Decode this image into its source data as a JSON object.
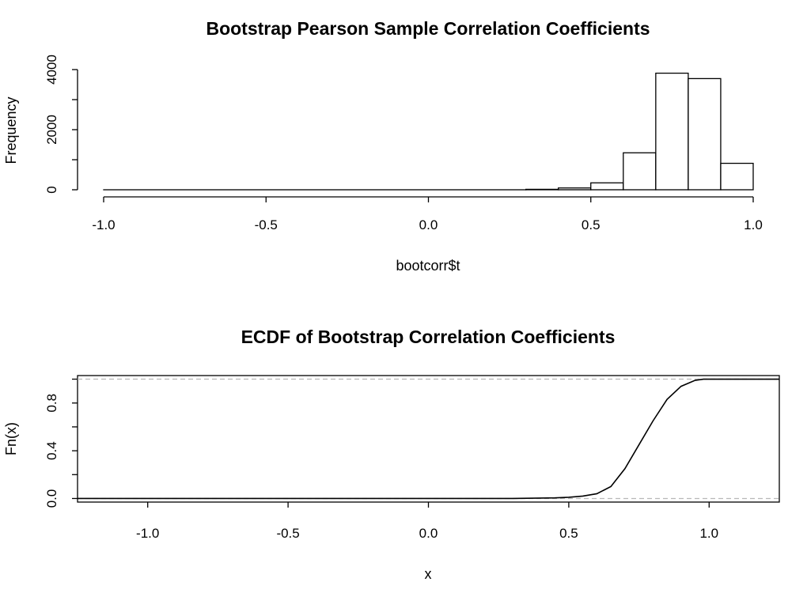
{
  "chart_data": [
    {
      "type": "bar",
      "subtype": "histogram",
      "title": "Bootstrap Pearson Sample Correlation Coefficients",
      "xlabel": "bootcorr$t",
      "ylabel": "Frequency",
      "xlim": [
        -1.0,
        1.0
      ],
      "ylim": [
        0,
        4000
      ],
      "x_ticks": [
        "-1.0",
        "-0.5",
        "0.0",
        "0.5",
        "1.0"
      ],
      "y_ticks": [
        "0",
        "2000",
        "4000"
      ],
      "y_minor_ticks": [
        1000,
        3000
      ],
      "bins": [
        {
          "x0": -1.0,
          "x1": 0.3,
          "count": 0
        },
        {
          "x0": 0.3,
          "x1": 0.4,
          "count": 15
        },
        {
          "x0": 0.4,
          "x1": 0.5,
          "count": 60
        },
        {
          "x0": 0.5,
          "x1": 0.6,
          "count": 230
        },
        {
          "x0": 0.6,
          "x1": 0.7,
          "count": 1230
        },
        {
          "x0": 0.7,
          "x1": 0.8,
          "count": 3880
        },
        {
          "x0": 0.8,
          "x1": 0.9,
          "count": 3700
        },
        {
          "x0": 0.9,
          "x1": 1.0,
          "count": 880
        }
      ],
      "grid": false
    },
    {
      "type": "line",
      "subtype": "ecdf",
      "title": "ECDF of Bootstrap Correlation Coefficients",
      "xlabel": "x",
      "ylabel": "Fn(x)",
      "xlim": [
        -1.25,
        1.25
      ],
      "ylim": [
        -0.03,
        1.03
      ],
      "x_ticks": [
        "-1.0",
        "-0.5",
        "0.0",
        "0.5",
        "1.0"
      ],
      "y_ticks": [
        "0.0",
        "0.4",
        "0.8"
      ],
      "y_minor_ticks": [
        0.2,
        0.6,
        1.0
      ],
      "reference_lines": [
        0,
        1
      ],
      "series": [
        {
          "x": [
            -1.25,
            0.3,
            0.45,
            0.5,
            0.55,
            0.6,
            0.65,
            0.7,
            0.75,
            0.8,
            0.85,
            0.9,
            0.95,
            0.98,
            1.25
          ],
          "y": [
            0,
            0,
            0.005,
            0.01,
            0.02,
            0.04,
            0.1,
            0.25,
            0.45,
            0.65,
            0.83,
            0.94,
            0.99,
            1.0,
            1.0
          ]
        }
      ],
      "grid": false
    }
  ]
}
